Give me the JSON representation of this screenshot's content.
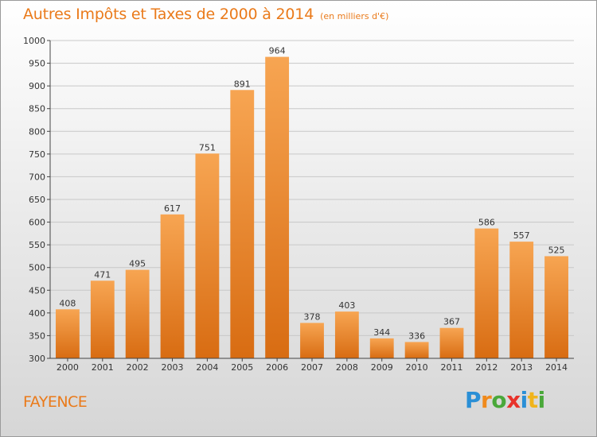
{
  "title": "Autres Impôts et Taxes de 2000 à 2014",
  "subtitle": "(en milliers d'€)",
  "commune": "FAYENCE",
  "logo": {
    "letters": [
      "P",
      "r",
      "o",
      "x",
      "i",
      "t",
      "i"
    ]
  },
  "colors": {
    "accent": "#ea7a1a",
    "bar_top": "#f7a552",
    "bar_bottom": "#d86c12",
    "axis": "#444444",
    "grid": "#c8c8c8"
  },
  "chart_data": {
    "type": "bar",
    "title": "Autres Impôts et Taxes de 2000 à 2014",
    "subtitle": "(en milliers d'€)",
    "xlabel": "",
    "ylabel": "",
    "ylim": [
      300,
      1000
    ],
    "yticks": [
      300,
      350,
      400,
      450,
      500,
      550,
      600,
      650,
      700,
      750,
      800,
      850,
      900,
      950,
      1000
    ],
    "grid": true,
    "categories": [
      "2000",
      "2001",
      "2002",
      "2003",
      "2004",
      "2005",
      "2006",
      "2007",
      "2008",
      "2009",
      "2010",
      "2011",
      "2012",
      "2013",
      "2014"
    ],
    "values": [
      408,
      471,
      495,
      617,
      751,
      891,
      964,
      378,
      403,
      344,
      336,
      367,
      586,
      557,
      525
    ]
  }
}
